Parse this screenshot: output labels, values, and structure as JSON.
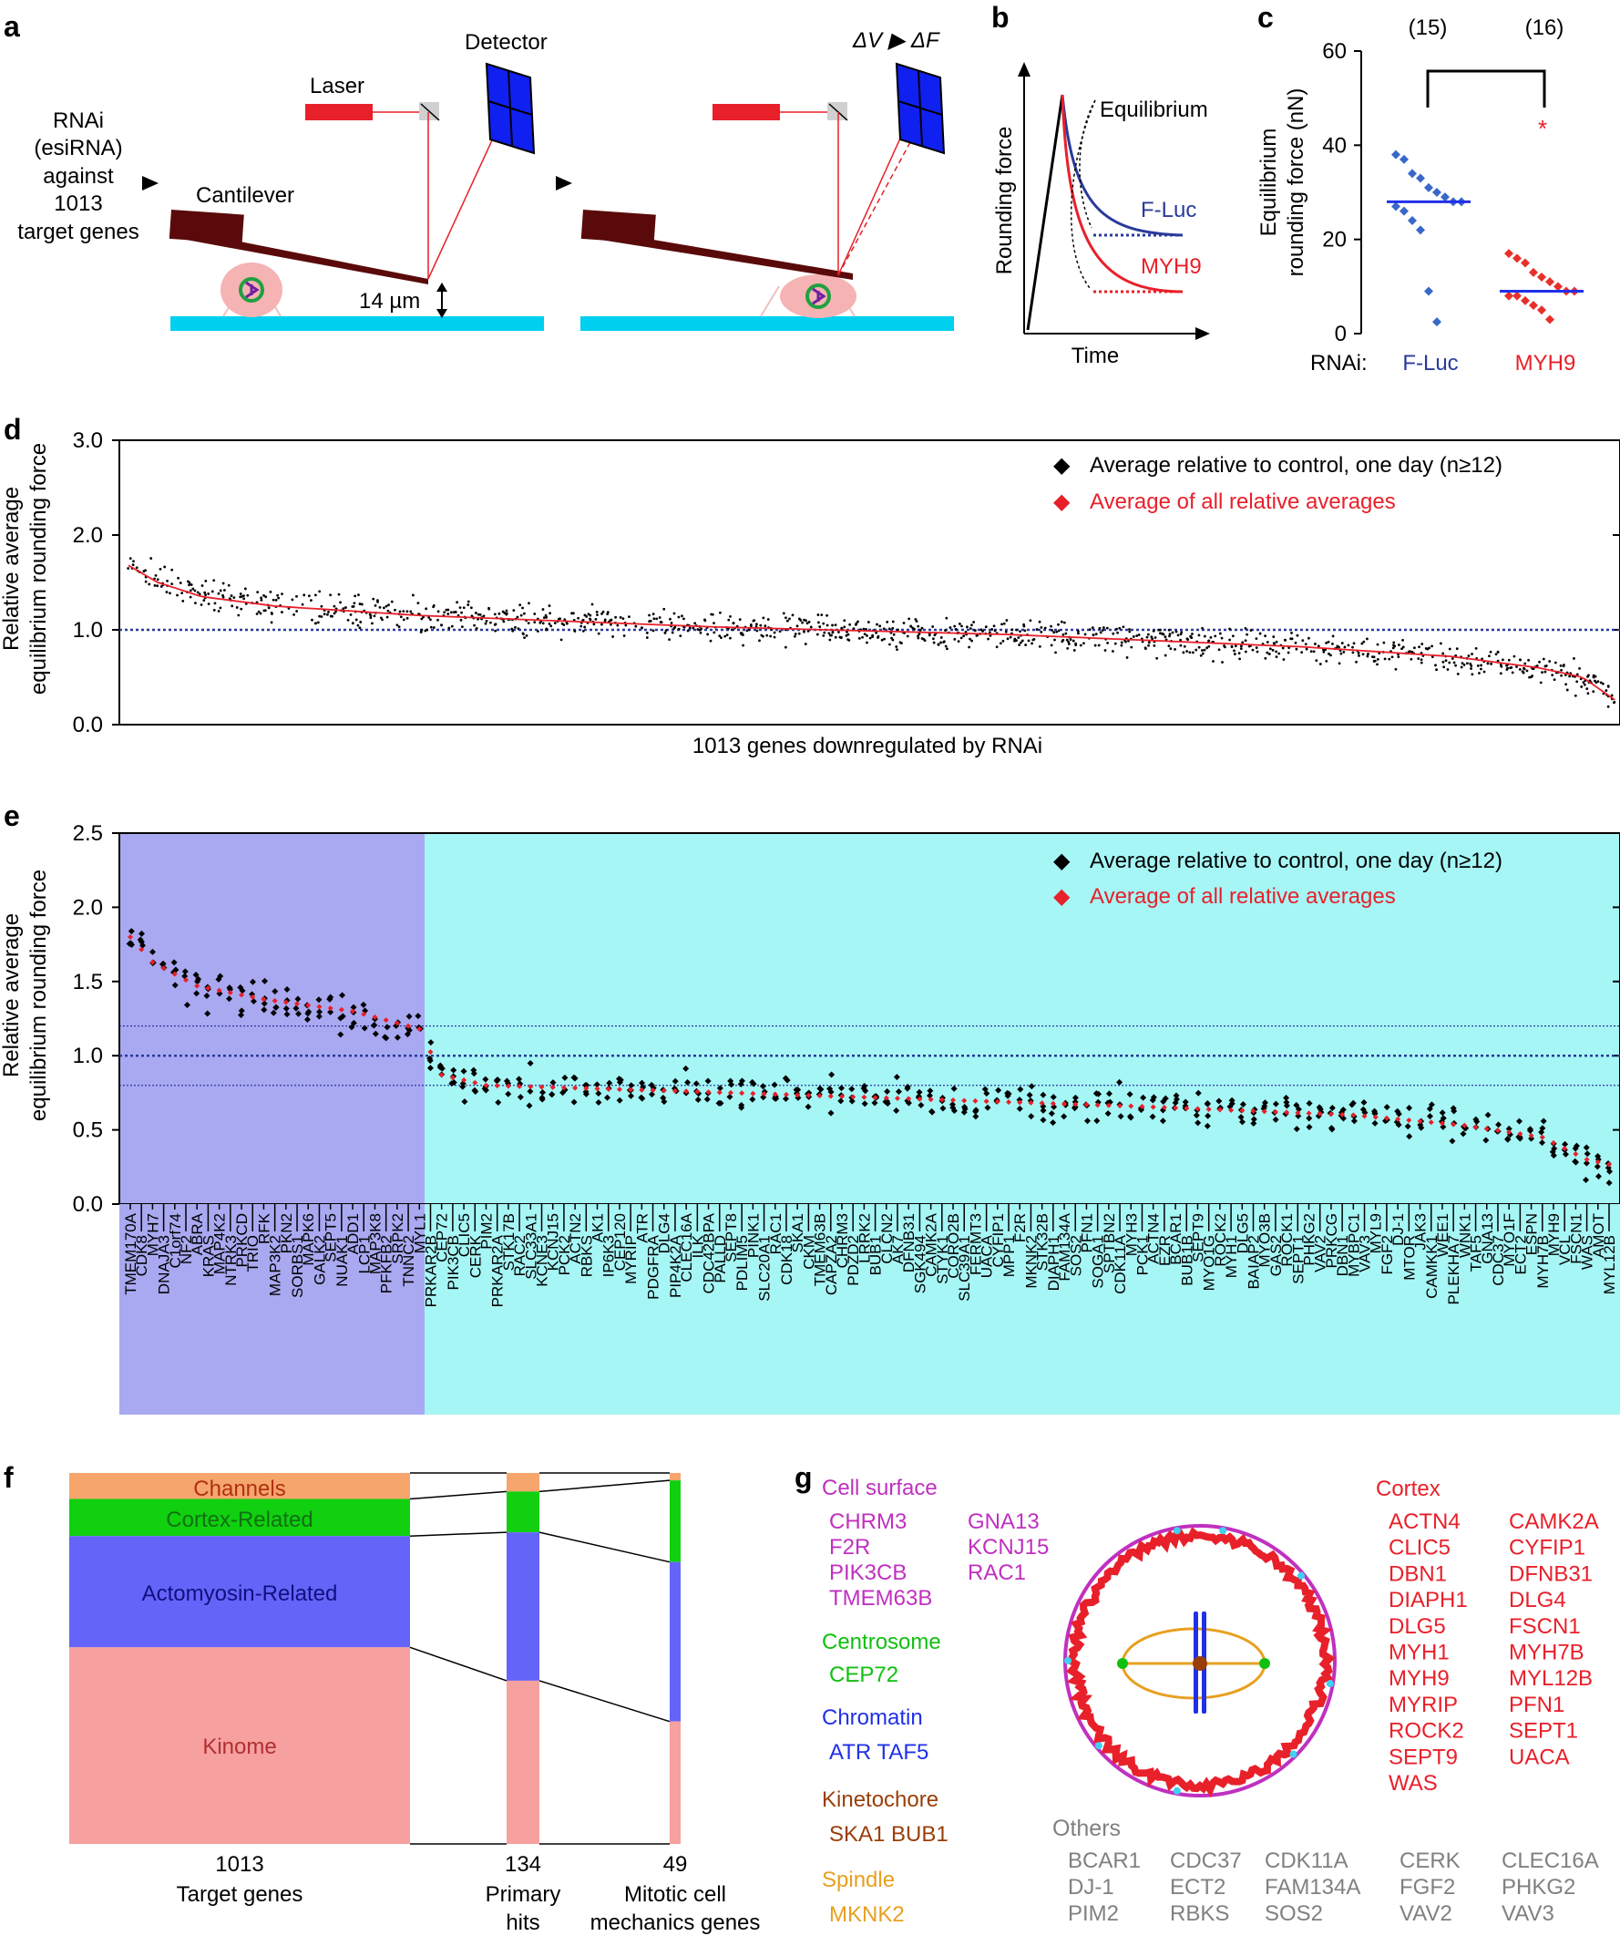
{
  "colors": {
    "red": "#e8202a",
    "blue": "#2a3a9a",
    "cyan": "#00d0f0",
    "detector": "#1020f0",
    "cantilever": "#5a0a0a",
    "lavender": "#a9a9f2",
    "lightcyan": "#a6f6f6",
    "magenta": "#c030c0",
    "green": "#10c010",
    "chromatin": "#2030e8",
    "brown": "#9a3e08",
    "orange": "#e8a020",
    "gray": "#808080"
  },
  "panel_letters": {
    "a": "a",
    "b": "b",
    "c": "c",
    "d": "d",
    "e": "e",
    "f": "f",
    "g": "g"
  },
  "panel_a": {
    "rnai_lines": [
      "RNAi",
      "(esiRNA)",
      "against",
      "1013",
      "target genes"
    ],
    "laser": "Laser",
    "detector": "Detector",
    "cantilever": "Cantilever",
    "gap": "14 µm",
    "delta": "ΔV ▶ ΔF"
  },
  "panel_b": {
    "ylabel": "Rounding force",
    "xlabel": "Time",
    "equilibrium": "Equilibrium",
    "fluc": "F-Luc",
    "myh9": "MYH9"
  },
  "panel_c": {
    "ylabel_1": "Equilibrium",
    "ylabel_2": "rounding force (nN)",
    "yticks": [
      "0",
      "20",
      "40",
      "60"
    ],
    "n_fluc": "(15)",
    "n_myh9": "(16)",
    "rnai_label": "RNAi:",
    "fluc": "F-Luc",
    "myh9": "MYH9",
    "star": "*"
  },
  "legend": {
    "black_marker": "◆",
    "red_marker": "◆",
    "black_text": "Average relative to control, one day (n≥12)",
    "red_text": "Average of all relative averages"
  },
  "panel_d": {
    "ylabel_1": "Relative average",
    "ylabel_2": "equilibrium rounding force",
    "xlabel": "1013 genes downregulated by RNAi",
    "yticks": [
      "0.0",
      "1.0",
      "2.0",
      "3.0"
    ]
  },
  "panel_e": {
    "ylabel_1": "Relative average",
    "ylabel_2": "equilibrium rounding force",
    "yticks": [
      "0.0",
      "0.5",
      "1.0",
      "1.5",
      "2.0",
      "2.5"
    ]
  },
  "panel_f": {
    "bands": [
      "Channels",
      "Cortex-Related",
      "Actomyosin-Related",
      "Kinome"
    ],
    "col1_num": "1013",
    "col1_label": "Target genes",
    "col2_num": "134",
    "col2_label_1": "Primary",
    "col2_label_2": "hits",
    "col3_num": "49",
    "col3_label_1": "Mitotic cell",
    "col3_label_2": "mechanics genes"
  },
  "panel_g": {
    "cell_surface": {
      "title": "Cell surface",
      "col1": [
        "CHRM3",
        "F2R",
        "PIK3CB",
        "TMEM63B"
      ],
      "col2": [
        "GNA13",
        "KCNJ15",
        "RAC1"
      ]
    },
    "centrosome": {
      "title": "Centrosome",
      "genes": "CEP72"
    },
    "chromatin": {
      "title": "Chromatin",
      "genes": "ATR TAF5"
    },
    "kinetochore": {
      "title": "Kinetochore",
      "genes": "SKA1 BUB1"
    },
    "spindle": {
      "title": "Spindle",
      "genes": "MKNK2"
    },
    "cortex": {
      "title": "Cortex",
      "col1": [
        "ACTN4",
        "CLIC5",
        "DBN1",
        "DIAPH1",
        "DLG5",
        "MYH1",
        "MYH9",
        "MYRIP",
        "ROCK2",
        "SEPT9",
        "WAS"
      ],
      "col2": [
        "CAMK2A",
        "CYFIP1",
        "DFNB31",
        "DLG4",
        "FSCN1",
        "MYH7B",
        "MYL12B",
        "PFN1",
        "SEPT1",
        "UACA"
      ]
    },
    "others": {
      "title": "Others",
      "cols": [
        [
          "BCAR1",
          "DJ-1",
          "PIM2"
        ],
        [
          "CDC37",
          "ECT2",
          "RBKS"
        ],
        [
          "CDK11A",
          "FAM134A",
          "SOS2"
        ],
        [
          "CERK",
          "FGF2",
          "VAV2"
        ],
        [
          "CLEC16A",
          "PHKG2",
          "VAV3"
        ]
      ]
    }
  },
  "chart_data": [
    {
      "type": "scatter",
      "panel": "c",
      "title": "",
      "ylabel": "Equilibrium rounding force (nN)",
      "xlabel": "RNAi",
      "ylim": [
        0,
        60
      ],
      "categories": [
        "F-Luc",
        "MYH9"
      ],
      "series": [
        {
          "name": "F-Luc",
          "values": [
            38,
            37,
            34,
            33,
            31,
            30,
            29,
            28,
            28,
            27,
            26,
            24,
            22,
            9,
            2.5
          ],
          "median": 28
        },
        {
          "name": "MYH9",
          "values": [
            17,
            16,
            15,
            13,
            12,
            11,
            10,
            9,
            9,
            8,
            8,
            7,
            6,
            5,
            3
          ],
          "median": 9,
          "outlier": 43
        }
      ]
    },
    {
      "type": "scatter",
      "panel": "d",
      "xlabel": "1013 genes downregulated by RNAi",
      "ylabel": "Relative average equilibrium rounding force",
      "ylim": [
        0,
        3
      ],
      "n_genes": 1013,
      "reference_line": 1.0,
      "average_curve": [
        [
          0,
          1.68
        ],
        [
          20,
          1.5
        ],
        [
          50,
          1.35
        ],
        [
          100,
          1.25
        ],
        [
          200,
          1.15
        ],
        [
          400,
          1.03
        ],
        [
          600,
          0.95
        ],
        [
          800,
          0.82
        ],
        [
          900,
          0.72
        ],
        [
          960,
          0.6
        ],
        [
          990,
          0.5
        ],
        [
          1013,
          0.25
        ]
      ]
    },
    {
      "type": "scatter",
      "panel": "e",
      "ylabel": "Relative average equilibrium rounding force",
      "ylim": [
        0,
        2.5
      ],
      "reference_lines": [
        1.2,
        1.0,
        0.8
      ],
      "genes": [
        "TMEM170A",
        "CDK8",
        "MYH7",
        "DNAJA3",
        "C1orf74",
        "NF2",
        "ABRA",
        "KRAS",
        "MAP4K2",
        "NTRK3",
        "PRKCD",
        "TRIO",
        "RFK",
        "MAP3K2",
        "PKN2",
        "SORBS1",
        "MAPK6",
        "GALK2",
        "SEPT5",
        "NUAK1",
        "ADD1",
        "LCP1",
        "MAP3K8",
        "PFKFB2",
        "SRPK2",
        "TNNC2",
        "MYL1",
        "PRKAR2B",
        "CEP72",
        "PIK3CB",
        "CLIC5",
        "CERK",
        "PIM2",
        "PRKAR2A",
        "STK17B",
        "RAC2",
        "SLC33A1",
        "KCNE3",
        "KCNJ15",
        "PCK2",
        "ACTN2",
        "RBKS",
        "AK1",
        "IP6K3",
        "CEP120",
        "MYRIP",
        "ATR",
        "PDGFRA",
        "DLG4",
        "PIP4K2A",
        "CLEC16A",
        "ILK",
        "CDC42BPA",
        "PALLD",
        "SEPT8",
        "PDLIM5",
        "PINK1",
        "SLC20A1",
        "RAC1",
        "CDK18",
        "SKA1",
        "CKM",
        "TMEM63B",
        "CAPZA2",
        "CHRM3",
        "PDZD2",
        "LRRK2",
        "BUB1",
        "CLCN2",
        "AK7",
        "DFNB31",
        "SGK494",
        "CAMK2A",
        "STYK1",
        "CORO2B",
        "SLC39A1",
        "FERMT3",
        "UACA",
        "CYFIP1",
        "MPP1",
        "F2R",
        "MKNK2",
        "STK32B",
        "DIAPH1",
        "FAM134A",
        "SOS2",
        "PFN1",
        "SOGA1",
        "SPTBN2",
        "CDK11A",
        "MYH3",
        "PCK1",
        "ACTN4",
        "EZR",
        "BCAR1",
        "BUB1B",
        "SEPT9",
        "MYO1G",
        "ROCK2",
        "MYH1",
        "DLG5",
        "BAIAP2",
        "MYO3B",
        "GAS2",
        "ROCK1",
        "SEPT1",
        "PHKG2",
        "VAV2",
        "PRKCG",
        "DBN1",
        "MYBPC1",
        "VAV3",
        "MYL9",
        "FGF2",
        "DJ-1",
        "MTOR",
        "JAK3",
        "CAMKK1",
        "WEE1",
        "PLEKHA7",
        "WNK1",
        "TAF5",
        "GNA13",
        "CDC37",
        "MYO1F",
        "ECT2",
        "ESPN",
        "MYH7B",
        "MYH9",
        "VCL",
        "FSCN1",
        "WAS",
        "AMOT",
        "MYL12B"
      ],
      "n_hits_high": 27,
      "average_curve": [
        [
          0,
          1.8
        ],
        [
          2,
          1.63
        ],
        [
          6,
          1.47
        ],
        [
          12,
          1.38
        ],
        [
          20,
          1.3
        ],
        [
          26,
          1.18
        ],
        [
          28,
          0.87
        ],
        [
          32,
          0.8
        ],
        [
          50,
          0.76
        ],
        [
          70,
          0.71
        ],
        [
          90,
          0.66
        ],
        [
          110,
          0.6
        ],
        [
          120,
          0.53
        ],
        [
          127,
          0.45
        ],
        [
          131,
          0.3
        ],
        [
          134,
          0.25
        ]
      ]
    },
    {
      "type": "bar",
      "panel": "f",
      "title": "",
      "categories": [
        "1013 Target genes",
        "134 Primary hits",
        "49 Mitotic cell mechanics genes"
      ],
      "series": [
        {
          "name": "Channels",
          "values": [
            0.07,
            0.05,
            0.02
          ]
        },
        {
          "name": "Cortex-Related",
          "values": [
            0.1,
            0.11,
            0.22
          ]
        },
        {
          "name": "Actomyosin-Related",
          "values": [
            0.3,
            0.4,
            0.43
          ]
        },
        {
          "name": "Kinome",
          "values": [
            0.53,
            0.44,
            0.33
          ]
        }
      ]
    }
  ]
}
